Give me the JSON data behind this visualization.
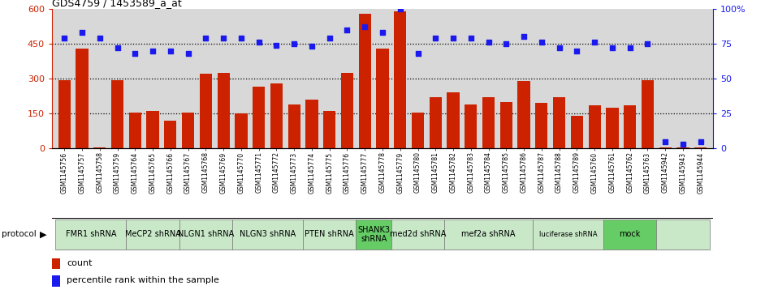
{
  "title": "GDS4759 / 1453589_a_at",
  "samples": [
    "GSM1145756",
    "GSM1145757",
    "GSM1145758",
    "GSM1145759",
    "GSM1145764",
    "GSM1145765",
    "GSM1145766",
    "GSM1145767",
    "GSM1145768",
    "GSM1145769",
    "GSM1145770",
    "GSM1145771",
    "GSM1145772",
    "GSM1145773",
    "GSM1145774",
    "GSM1145775",
    "GSM1145776",
    "GSM1145777",
    "GSM1145778",
    "GSM1145779",
    "GSM1145780",
    "GSM1145781",
    "GSM1145782",
    "GSM1145783",
    "GSM1145784",
    "GSM1145785",
    "GSM1145786",
    "GSM1145787",
    "GSM1145788",
    "GSM1145789",
    "GSM1145760",
    "GSM1145761",
    "GSM1145762",
    "GSM1145763",
    "GSM1145942",
    "GSM1145943",
    "GSM1145944"
  ],
  "counts": [
    295,
    430,
    5,
    295,
    155,
    160,
    120,
    155,
    320,
    325,
    150,
    265,
    280,
    190,
    210,
    160,
    325,
    580,
    430,
    590,
    155,
    220,
    240,
    190,
    220,
    200,
    290,
    195,
    220,
    140,
    185,
    175,
    185,
    295,
    5,
    5,
    5
  ],
  "percentiles": [
    79,
    83,
    79,
    72,
    68,
    70,
    70,
    68,
    79,
    79,
    79,
    76,
    74,
    75,
    73,
    79,
    85,
    87,
    83,
    100,
    68,
    79,
    79,
    79,
    76,
    75,
    80,
    76,
    72,
    70,
    76,
    72,
    72,
    75,
    5,
    3,
    5
  ],
  "bar_color": "#cc2200",
  "dot_color": "#1a1aee",
  "ylim_left": [
    0,
    600
  ],
  "ylim_right": [
    0,
    100
  ],
  "yticks_left": [
    0,
    150,
    300,
    450,
    600
  ],
  "yticks_right": [
    0,
    25,
    50,
    75,
    100
  ],
  "ytick_color_left": "#cc2200",
  "ytick_color_right": "#1a1aee",
  "hline_values": [
    150,
    300,
    450
  ],
  "protocols": [
    {
      "label": "FMR1 shRNA",
      "start": 0,
      "end": 4,
      "color": "#c8e8c8"
    },
    {
      "label": "MeCP2 shRNA",
      "start": 4,
      "end": 7,
      "color": "#c8e8c8"
    },
    {
      "label": "NLGN1 shRNA",
      "start": 7,
      "end": 10,
      "color": "#c8e8c8"
    },
    {
      "label": "NLGN3 shRNA",
      "start": 10,
      "end": 14,
      "color": "#c8e8c8"
    },
    {
      "label": "PTEN shRNA",
      "start": 14,
      "end": 17,
      "color": "#c8e8c8"
    },
    {
      "label": "SHANK3\nshRNA",
      "start": 17,
      "end": 19,
      "color": "#66cc66"
    },
    {
      "label": "med2d shRNA",
      "start": 19,
      "end": 22,
      "color": "#c8e8c8"
    },
    {
      "label": "mef2a shRNA",
      "start": 22,
      "end": 27,
      "color": "#c8e8c8"
    },
    {
      "label": "luciferase shRNA",
      "start": 27,
      "end": 31,
      "color": "#c8e8c8"
    },
    {
      "label": "mock",
      "start": 31,
      "end": 34,
      "color": "#66cc66"
    },
    {
      "label": "",
      "start": 34,
      "end": 37,
      "color": "#c8e8c8"
    }
  ],
  "protocol_label": "protocol",
  "legend_count_label": "count",
  "legend_pct_label": "percentile rank within the sample",
  "bg_gray": "#d8d8d8"
}
